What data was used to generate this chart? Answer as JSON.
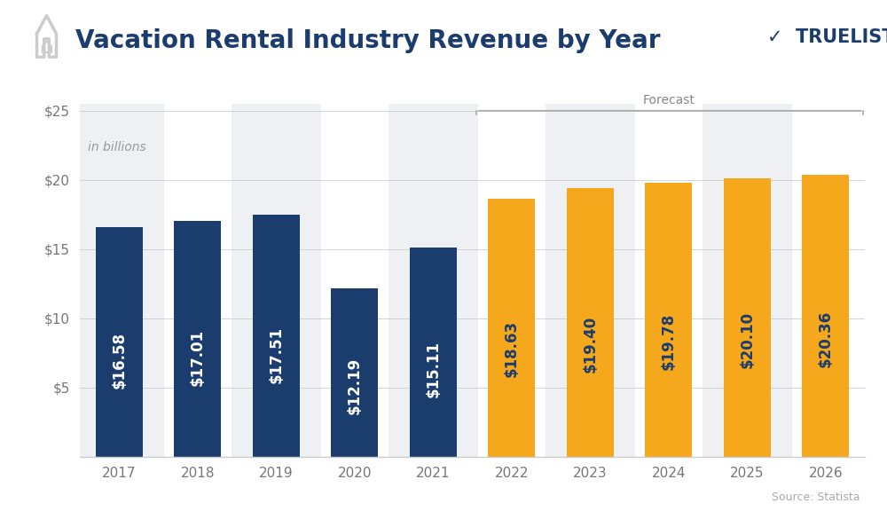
{
  "years": [
    "2017",
    "2018",
    "2019",
    "2020",
    "2021",
    "2022",
    "2023",
    "2024",
    "2025",
    "2026"
  ],
  "values": [
    16.58,
    17.01,
    17.51,
    12.19,
    15.11,
    18.63,
    19.4,
    19.78,
    20.1,
    20.36
  ],
  "labels": [
    "$16.58",
    "$17.01",
    "$17.51",
    "$12.19",
    "$15.11",
    "$18.63",
    "$19.40",
    "$19.78",
    "$20.10",
    "$20.36"
  ],
  "navy_color": "#1b3d6e",
  "orange_color": "#f5a81c",
  "bg_shade_color": "#eef0f4",
  "title": "Vacation Rental Industry Revenue by Year",
  "title_color": "#1b3d6e",
  "subtitle": "in billions",
  "source_text": "Source: Statista",
  "forecast_label": "Forecast",
  "shaded_indices": [
    0,
    2,
    4,
    6,
    8
  ],
  "background_color": "#ffffff",
  "label_fontsize": 12,
  "title_fontsize": 20,
  "ytick_labels": [
    "$5",
    "$10",
    "$15",
    "$20",
    "$25"
  ],
  "ytick_values": [
    5,
    10,
    15,
    20,
    25
  ],
  "bar_width": 0.6,
  "xlim_left": -0.5,
  "xlim_right": 9.5,
  "ylim_top": 25.5
}
